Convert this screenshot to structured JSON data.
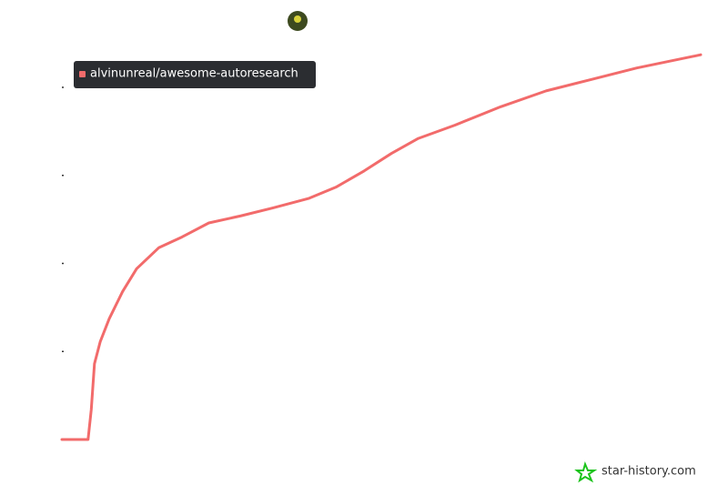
{
  "chart_data": {
    "type": "line",
    "series": [
      {
        "name": "alvinunreal/awesome-autoresearch",
        "color": "#f26b6b",
        "x": [
          0,
          4.1,
          4.6,
          5.1,
          6,
          7.4,
          9.5,
          11.7,
          15.2,
          18.8,
          23,
          28,
          33,
          38.7,
          43,
          47.3,
          51.6,
          55.8,
          61.5,
          68.7,
          75.8,
          82.9,
          90,
          100
        ],
        "values": [
          0,
          0,
          0.34,
          0.86,
          1.11,
          1.37,
          1.68,
          1.94,
          2.18,
          2.3,
          2.46,
          2.54,
          2.63,
          2.74,
          2.87,
          3.05,
          3.25,
          3.42,
          3.57,
          3.78,
          3.96,
          4.09,
          4.22,
          4.37
        ]
      }
    ],
    "xlim": [
      0,
      100
    ],
    "ylim": [
      0,
      4
    ],
    "yticks": [
      0,
      1,
      2,
      3,
      4
    ],
    "watermark": "star-history.com"
  }
}
